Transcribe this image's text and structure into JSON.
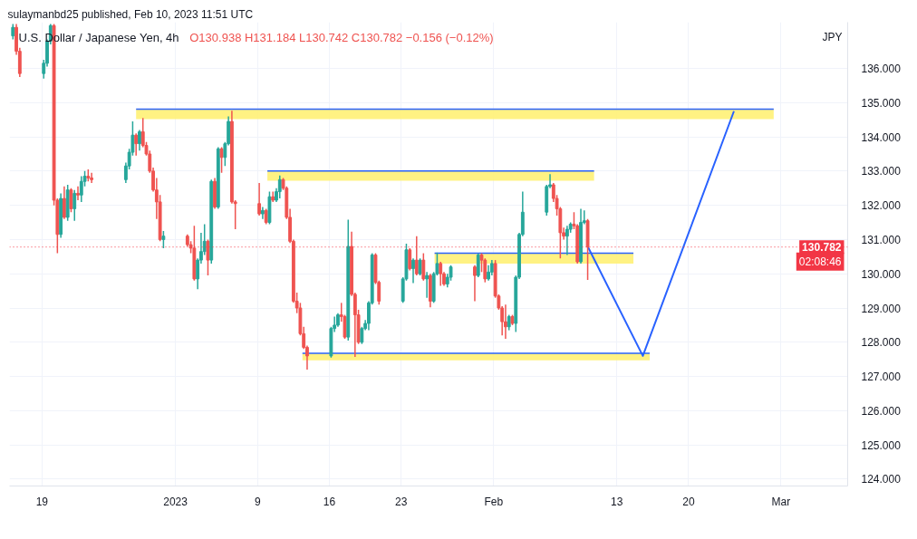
{
  "chart_data": {
    "type": "candlestick",
    "title": "U.S. Dollar / Japanese Yen, 4h",
    "subtitle": "O130.938 H131.184 L130.742 C130.782 −0.156 (−0.12%)",
    "ylabel": "JPY",
    "annotations": [
      "sulaymanbd25 published, Feb 10, 2023 11:51 UTC"
    ],
    "x": [
      "2022-12-16T04:00",
      "2022-12-16T12:00",
      "2022-12-16T20:00",
      "2022-12-19T04:00",
      "2022-12-19T12:00",
      "2022-12-19T20:00",
      "2022-12-20T04:00",
      "2022-12-20T12:00",
      "2022-12-20T20:00",
      "2022-12-21T04:00",
      "2022-12-21T12:00",
      "2022-12-21T20:00",
      "2022-12-22T04:00",
      "2022-12-22T12:00",
      "2022-12-22T20:00",
      "2022-12-23T04:00",
      "2022-12-23T12:00",
      "2022-12-23T20:00",
      "2022-12-27T04:00",
      "2022-12-27T12:00",
      "2022-12-27T20:00",
      "2022-12-28T04:00",
      "2022-12-28T12:00",
      "2022-12-28T20:00",
      "2022-12-29T04:00",
      "2022-12-29T12:00",
      "2022-12-29T20:00",
      "2022-12-30T04:00",
      "2022-12-30T12:00",
      "2022-12-30T20:00",
      "2023-01-02T04:00",
      "2023-01-02T12:00",
      "2023-01-02T20:00",
      "2023-01-03T04:00",
      "2023-01-03T12:00",
      "2023-01-03T20:00",
      "2023-01-04T04:00",
      "2023-01-04T12:00",
      "2023-01-04T20:00",
      "2023-01-05T04:00",
      "2023-01-05T12:00",
      "2023-01-05T20:00",
      "2023-01-06T04:00",
      "2023-01-06T12:00",
      "2023-01-06T20:00",
      "2023-01-09T04:00",
      "2023-01-09T12:00",
      "2023-01-09T20:00",
      "2023-01-10T04:00",
      "2023-01-10T12:00",
      "2023-01-10T20:00",
      "2023-01-11T04:00",
      "2023-01-11T12:00",
      "2023-01-11T20:00",
      "2023-01-12T04:00",
      "2023-01-12T12:00",
      "2023-01-12T20:00",
      "2023-01-13T04:00",
      "2023-01-13T12:00",
      "2023-01-13T20:00",
      "2023-01-16T04:00",
      "2023-01-16T12:00",
      "2023-01-16T20:00",
      "2023-01-17T04:00",
      "2023-01-17T12:00",
      "2023-01-17T20:00",
      "2023-01-18T04:00",
      "2023-01-18T12:00",
      "2023-01-18T20:00",
      "2023-01-19T04:00",
      "2023-01-19T12:00",
      "2023-01-19T20:00",
      "2023-01-20T04:00",
      "2023-01-20T12:00",
      "2023-01-20T20:00",
      "2023-01-23T04:00",
      "2023-01-23T12:00",
      "2023-01-23T20:00",
      "2023-01-24T04:00",
      "2023-01-24T12:00",
      "2023-01-24T20:00",
      "2023-01-25T04:00",
      "2023-01-25T12:00",
      "2023-01-25T20:00",
      "2023-01-26T04:00",
      "2023-01-26T12:00",
      "2023-01-26T20:00",
      "2023-01-27T04:00",
      "2023-01-27T12:00",
      "2023-01-27T20:00",
      "2023-01-30T04:00",
      "2023-01-30T12:00",
      "2023-01-30T20:00",
      "2023-01-31T04:00",
      "2023-01-31T12:00",
      "2023-01-31T20:00",
      "2023-02-01T04:00",
      "2023-02-01T12:00",
      "2023-02-01T20:00",
      "2023-02-02T04:00",
      "2023-02-02T12:00",
      "2023-02-02T20:00",
      "2023-02-03T04:00",
      "2023-02-03T12:00",
      "2023-02-03T20:00",
      "2023-02-06T04:00",
      "2023-02-06T12:00",
      "2023-02-06T20:00",
      "2023-02-07T04:00",
      "2023-02-07T12:00",
      "2023-02-07T20:00",
      "2023-02-08T04:00",
      "2023-02-08T12:00",
      "2023-02-08T20:00",
      "2023-02-09T04:00",
      "2023-02-09T12:00",
      "2023-02-09T20:00",
      "2023-02-10T04:00"
    ],
    "ohlc": [
      [
        136.95,
        137.3,
        136.85,
        137.2
      ],
      [
        137.2,
        137.3,
        136.4,
        136.5
      ],
      [
        136.5,
        136.6,
        135.75,
        135.85
      ],
      [
        135.85,
        136.25,
        135.7,
        136.15
      ],
      [
        136.15,
        136.85,
        136.05,
        136.8
      ],
      [
        136.8,
        137.3,
        136.7,
        137.25
      ],
      [
        137.25,
        137.3,
        132.0,
        132.15
      ],
      [
        132.15,
        132.2,
        130.6,
        131.15
      ],
      [
        131.15,
        132.35,
        131.05,
        132.2
      ],
      [
        132.2,
        132.55,
        131.6,
        131.65
      ],
      [
        131.65,
        132.6,
        131.55,
        132.45
      ],
      [
        132.45,
        132.5,
        131.8,
        131.9
      ],
      [
        131.9,
        132.45,
        131.55,
        132.35
      ],
      [
        132.35,
        132.55,
        132.15,
        132.3
      ],
      [
        132.3,
        132.85,
        132.1,
        132.7
      ],
      [
        132.7,
        133.0,
        132.55,
        132.85
      ],
      [
        132.85,
        133.05,
        132.7,
        132.8
      ],
      [
        132.8,
        132.95,
        132.65,
        132.75
      ],
      [
        132.75,
        133.25,
        132.65,
        133.15
      ],
      [
        133.15,
        133.65,
        133.05,
        133.55
      ],
      [
        133.55,
        134.45,
        133.45,
        134.05
      ],
      [
        134.05,
        134.1,
        133.45,
        133.8
      ],
      [
        133.8,
        134.2,
        133.6,
        134.15
      ],
      [
        134.15,
        134.55,
        133.7,
        133.75
      ],
      [
        133.75,
        133.85,
        133.45,
        133.5
      ],
      [
        133.5,
        133.6,
        132.95,
        133.0
      ],
      [
        133.0,
        133.1,
        132.4,
        132.45
      ],
      [
        132.45,
        132.8,
        131.6,
        132.1
      ],
      [
        132.1,
        132.3,
        130.95,
        131.0
      ],
      [
        131.0,
        131.25,
        130.75,
        131.1
      ],
      [
        131.1,
        131.15,
        130.8,
        130.85
      ],
      [
        130.85,
        130.95,
        130.6,
        130.75
      ],
      [
        130.75,
        131.4,
        129.8,
        129.85
      ],
      [
        129.85,
        130.45,
        129.55,
        130.4
      ],
      [
        130.4,
        131.2,
        130.3,
        130.65
      ],
      [
        130.65,
        131.45,
        130.55,
        130.95
      ],
      [
        130.95,
        131.0,
        129.95,
        130.4
      ],
      [
        130.4,
        132.75,
        130.3,
        132.7
      ],
      [
        132.7,
        132.8,
        131.9,
        131.95
      ],
      [
        131.95,
        133.7,
        131.9,
        133.65
      ],
      [
        133.65,
        133.7,
        132.95,
        133.4
      ],
      [
        133.4,
        133.85,
        133.15,
        133.8
      ],
      [
        133.8,
        134.6,
        133.75,
        134.45
      ],
      [
        134.45,
        134.76,
        132.05,
        132.1
      ],
      [
        132.1,
        132.15,
        131.3,
        132.05
      ],
      [
        132.05,
        132.65,
        131.7,
        131.75
      ],
      [
        131.75,
        131.95,
        131.6,
        131.85
      ],
      [
        131.85,
        131.9,
        131.45,
        131.5
      ],
      [
        131.5,
        132.4,
        131.45,
        132.25
      ],
      [
        132.25,
        132.4,
        132.1,
        132.15
      ],
      [
        132.15,
        132.5,
        132.1,
        132.4
      ],
      [
        132.4,
        132.87,
        132.2,
        132.75
      ],
      [
        132.75,
        132.8,
        132.45,
        132.5
      ],
      [
        132.5,
        132.55,
        131.6,
        131.65
      ],
      [
        131.65,
        131.9,
        130.9,
        130.95
      ],
      [
        130.95,
        131.0,
        129.15,
        129.2
      ],
      [
        129.2,
        129.45,
        128.85,
        129.0
      ],
      [
        129.0,
        129.15,
        128.2,
        128.25
      ],
      [
        128.25,
        128.45,
        127.8,
        127.85
      ],
      [
        127.85,
        127.9,
        127.2,
        127.6
      ],
      [
        127.6,
        128.45,
        127.55,
        128.4
      ],
      [
        128.4,
        128.75,
        128.3,
        128.5
      ],
      [
        128.5,
        128.85,
        128.45,
        128.8
      ],
      [
        128.8,
        129.15,
        128.6,
        128.75
      ],
      [
        128.75,
        128.8,
        128.1,
        128.15
      ],
      [
        128.15,
        131.58,
        128.05,
        130.8
      ],
      [
        130.8,
        131.23,
        129.35,
        129.4
      ],
      [
        129.4,
        129.45,
        127.57,
        128.8
      ],
      [
        128.8,
        128.95,
        127.95,
        128.0
      ],
      [
        128.0,
        128.45,
        127.95,
        128.4
      ],
      [
        128.4,
        128.65,
        128.35,
        128.55
      ],
      [
        128.55,
        129.2,
        128.35,
        129.15
      ],
      [
        129.15,
        130.6,
        129.1,
        130.55
      ],
      [
        130.55,
        130.6,
        129.7,
        129.75
      ],
      [
        129.75,
        129.8,
        129.1,
        129.2
      ],
      [
        129.2,
        129.9,
        129.15,
        129.85
      ],
      [
        129.85,
        130.88,
        129.8,
        130.7
      ],
      [
        130.7,
        130.75,
        130.1,
        130.15
      ],
      [
        130.15,
        130.45,
        129.73,
        130.4
      ],
      [
        130.4,
        131.1,
        129.95,
        130.0
      ],
      [
        130.0,
        130.45,
        129.95,
        130.4
      ],
      [
        130.4,
        130.6,
        129.8,
        129.85
      ],
      [
        129.85,
        130.05,
        129.3,
        129.95
      ],
      [
        129.95,
        130.0,
        129.02,
        129.2
      ],
      [
        129.2,
        130.05,
        129.15,
        130.0
      ],
      [
        130.0,
        130.62,
        129.95,
        130.3
      ],
      [
        130.3,
        130.35,
        129.65,
        130.0
      ],
      [
        130.0,
        130.05,
        129.65,
        129.7
      ],
      [
        129.7,
        130.0,
        129.6,
        129.9
      ],
      [
        129.9,
        130.25,
        129.8,
        130.2
      ],
      [
        130.2,
        130.25,
        129.2,
        129.95
      ],
      [
        129.95,
        130.59,
        129.9,
        130.55
      ],
      [
        130.55,
        130.6,
        130.05,
        130.4
      ],
      [
        130.4,
        130.45,
        129.75,
        129.85
      ],
      [
        129.85,
        130.25,
        129.8,
        130.05
      ],
      [
        130.05,
        130.4,
        129.95,
        130.3
      ],
      [
        130.3,
        130.4,
        129.3,
        129.35
      ],
      [
        129.35,
        129.4,
        128.95,
        129.0
      ],
      [
        129.0,
        129.05,
        128.2,
        128.6
      ],
      [
        128.6,
        129.1,
        128.1,
        128.45
      ],
      [
        128.45,
        128.8,
        128.35,
        128.75
      ],
      [
        128.75,
        128.8,
        128.5,
        128.55
      ],
      [
        128.55,
        129.95,
        128.3,
        129.9
      ],
      [
        129.9,
        131.2,
        129.85,
        131.15
      ],
      [
        131.15,
        132.4,
        131.1,
        131.8
      ],
      [
        131.8,
        132.6,
        131.7,
        132.55
      ],
      [
        132.55,
        132.91,
        132.5,
        132.6
      ],
      [
        132.6,
        132.65,
        132.1,
        132.2
      ],
      [
        132.2,
        132.3,
        131.7,
        131.9
      ],
      [
        131.9,
        131.95,
        130.45,
        131.2
      ],
      [
        131.2,
        131.35,
        131.0,
        131.1
      ],
      [
        131.1,
        131.4,
        130.55,
        131.3
      ],
      [
        131.3,
        131.5,
        131.2,
        131.45
      ],
      [
        131.45,
        131.8,
        131.3,
        131.4
      ],
      [
        131.4,
        131.45,
        130.3,
        130.35
      ],
      [
        130.35,
        131.9,
        130.3,
        131.5
      ],
      [
        131.5,
        131.85,
        131.45,
        131.55
      ],
      [
        131.55,
        131.6,
        129.82,
        130.782
      ]
    ],
    "colors": [
      "#26a69a",
      "#ef5350",
      "#ef5350",
      "#26a69a",
      "#26a69a",
      "#26a69a",
      "#ef5350",
      "#ef5350",
      "#26a69a",
      "#ef5350",
      "#26a69a",
      "#ef5350",
      "#26a69a",
      "#ef5350",
      "#26a69a",
      "#26a69a",
      "#ef5350",
      "#ef5350",
      "#26a69a",
      "#26a69a",
      "#26a69a",
      "#ef5350",
      "#26a69a",
      "#ef5350",
      "#ef5350",
      "#ef5350",
      "#ef5350",
      "#ef5350",
      "#ef5350",
      "#26a69a",
      "#ef5350",
      "#ef5350",
      "#ef5350",
      "#26a69a",
      "#26a69a",
      "#26a69a",
      "#ef5350",
      "#26a69a",
      "#ef5350",
      "#26a69a",
      "#ef5350",
      "#26a69a",
      "#26a69a",
      "#ef5350",
      "#ef5350",
      "#ef5350",
      "#26a69a",
      "#ef5350",
      "#26a69a",
      "#ef5350",
      "#26a69a",
      "#26a69a",
      "#ef5350",
      "#ef5350",
      "#ef5350",
      "#ef5350",
      "#ef5350",
      "#ef5350",
      "#ef5350",
      "#ef5350",
      "#26a69a",
      "#26a69a",
      "#26a69a",
      "#ef5350",
      "#ef5350",
      "#26a69a",
      "#ef5350",
      "#ef5350",
      "#ef5350",
      "#26a69a",
      "#26a69a",
      "#26a69a",
      "#26a69a",
      "#ef5350",
      "#ef5350",
      "#26a69a",
      "#26a69a",
      "#ef5350",
      "#26a69a",
      "#ef5350",
      "#26a69a",
      "#ef5350",
      "#26a69a",
      "#ef5350",
      "#26a69a",
      "#26a69a",
      "#ef5350",
      "#ef5350",
      "#26a69a",
      "#26a69a",
      "#ef5350",
      "#26a69a",
      "#ef5350",
      "#ef5350",
      "#26a69a",
      "#26a69a",
      "#ef5350",
      "#ef5350",
      "#ef5350",
      "#ef5350",
      "#26a69a",
      "#ef5350",
      "#26a69a",
      "#26a69a",
      "#26a69a",
      "#26a69a",
      "#26a69a",
      "#ef5350",
      "#ef5350",
      "#ef5350",
      "#ef5350",
      "#26a69a",
      "#26a69a",
      "#ef5350",
      "#ef5350",
      "#26a69a",
      "#26a69a",
      "#ef5350"
    ],
    "series": [
      {
        "type": "line",
        "x": [
          "2022-12-28T04:00",
          "2023-02-28T07:00"
        ],
        "values": [
          134.81,
          134.81
        ],
        "lower": [
          134.52,
          134.52
        ],
        "upper": [
          134.81,
          134.81
        ],
        "color": "#2962ff"
      },
      {
        "type": "line",
        "x": [
          "2023-01-09T23:00",
          "2023-02-10T19:00"
        ],
        "values": [
          133.0,
          133.0
        ],
        "lower": [
          132.72,
          132.72
        ],
        "upper": [
          133.0,
          133.0
        ],
        "color": "#2962ff"
      },
      {
        "type": "line",
        "x": [
          "2023-01-13T09:00",
          "2023-02-16T05:00"
        ],
        "values": [
          127.68,
          127.68
        ],
        "lower": [
          127.47,
          127.47
        ],
        "upper": [
          127.68,
          127.68
        ],
        "color": "#2962ff"
      },
      {
        "type": "line",
        "x": [
          "2023-01-26T06:00",
          "2023-02-14T15:00"
        ],
        "values": [
          130.6,
          130.6
        ],
        "lower": [
          130.3,
          130.3
        ],
        "upper": [
          130.6,
          130.6
        ],
        "color": "#2962ff"
      },
      {
        "type": "line",
        "x": [
          "2023-02-10T04:00",
          "2023-02-15T13:00",
          "2023-02-24T10:00"
        ],
        "values": [
          130.8,
          127.6,
          134.75
        ],
        "color": "#2962ff"
      }
    ],
    "xlim": [
      "2022-12-15T20:00",
      "2023-03-07T12:00"
    ],
    "xticks": [
      {
        "value": "2022-12-19",
        "label": "19"
      },
      {
        "value": "2023",
        "label": "2023"
      },
      {
        "value": "2023-01-09",
        "label": "9"
      },
      {
        "value": "2023-01-16",
        "label": "16"
      },
      {
        "value": "2023-01-23",
        "label": "23"
      },
      {
        "value": "2023-02",
        "label": "Feb"
      },
      {
        "value": "2023-02-13",
        "label": "13"
      },
      {
        "value": "2023-02-20",
        "label": "20"
      },
      {
        "value": "2023-03",
        "label": "Mar"
      }
    ],
    "ylim": [
      123.8,
      137.35
    ],
    "yticks": [
      {
        "value": 124,
        "label": "124.000"
      },
      {
        "value": 125,
        "label": "125.000"
      },
      {
        "value": 126,
        "label": "126.000"
      },
      {
        "value": 127,
        "label": "127.000"
      },
      {
        "value": 128,
        "label": "128.000"
      },
      {
        "value": 129,
        "label": "129.000"
      },
      {
        "value": 130,
        "label": "130.000"
      },
      {
        "value": 131,
        "label": "131.000"
      },
      {
        "value": 132,
        "label": "132.000"
      },
      {
        "value": 133,
        "label": "133.000"
      },
      {
        "value": 134,
        "label": "134.000"
      },
      {
        "value": 135,
        "label": "135.000"
      },
      {
        "value": 136,
        "label": "136.000"
      }
    ],
    "grid": true,
    "ref_lines": [
      {
        "axis": "y",
        "value": 130.782,
        "label": "130.782\n02:08:46",
        "color": "#f23645",
        "line_style": "dotted"
      }
    ]
  }
}
